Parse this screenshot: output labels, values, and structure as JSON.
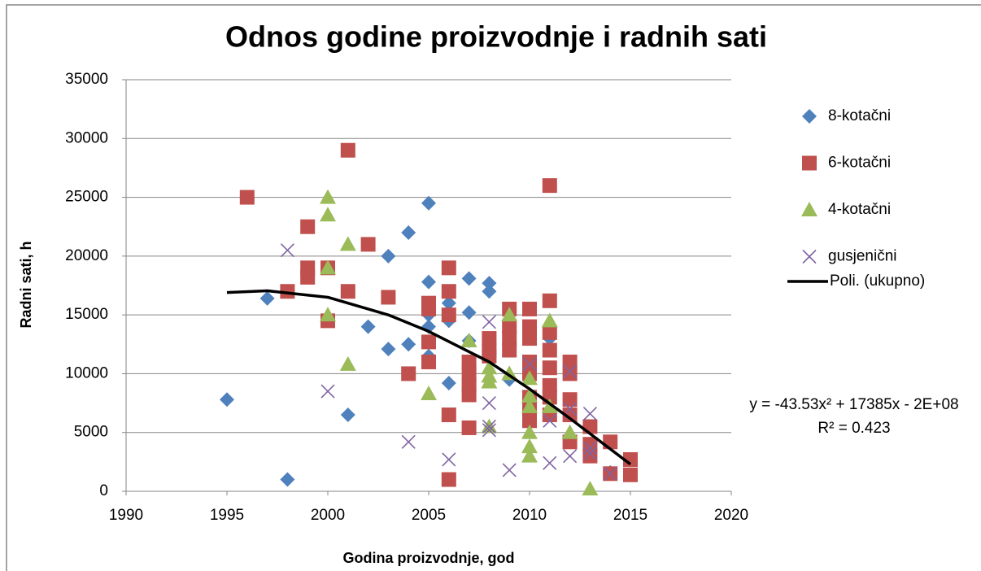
{
  "chart_data": {
    "type": "scatter",
    "title": "Odnos godine proizvodnje i radnih sati",
    "xlabel": "Godina proizvodnje, god",
    "ylabel": "Radni sati, h",
    "xlim": [
      1990,
      2020
    ],
    "xticks": [
      1990,
      1995,
      2000,
      2005,
      2010,
      2015,
      2020
    ],
    "ylim": [
      0,
      35000
    ],
    "yticks": [
      0,
      5000,
      10000,
      15000,
      20000,
      25000,
      30000,
      35000
    ],
    "grid": true,
    "legend": "right",
    "series": [
      {
        "name": "8-kotačni",
        "color": "#4f81bd",
        "marker": "diamond",
        "x": [
          1995,
          1997,
          1998,
          2001,
          2002,
          2003,
          2003,
          2004,
          2004,
          2005,
          2005,
          2005,
          2005,
          2005,
          2006,
          2006,
          2006,
          2007,
          2007,
          2007,
          2008,
          2008,
          2009,
          2011,
          2012,
          2014
        ],
        "values": [
          7800,
          16400,
          1000,
          6500,
          14000,
          12100,
          20000,
          12500,
          22000,
          24500,
          17800,
          15000,
          14000,
          11500,
          16000,
          14500,
          9200,
          18100,
          15200,
          12800,
          17700,
          17000,
          9500,
          13000,
          10200,
          1600
        ]
      },
      {
        "name": "6-kotačni",
        "color": "#c0504d",
        "marker": "square",
        "x": [
          1996,
          1998,
          1999,
          1999,
          1999,
          2000,
          2000,
          2001,
          2001,
          2002,
          2003,
          2004,
          2005,
          2005,
          2005,
          2005,
          2006,
          2006,
          2006,
          2006,
          2006,
          2007,
          2007,
          2007,
          2007,
          2007,
          2008,
          2008,
          2008,
          2009,
          2009,
          2009,
          2009,
          2010,
          2010,
          2010,
          2010,
          2010,
          2010,
          2010,
          2010,
          2011,
          2011,
          2011,
          2011,
          2011,
          2011,
          2011,
          2011,
          2012,
          2012,
          2012,
          2012,
          2012,
          2013,
          2013,
          2013,
          2014,
          2014,
          2015,
          2015
        ],
        "values": [
          25000,
          17000,
          22500,
          19000,
          18200,
          19000,
          14500,
          29000,
          17000,
          21000,
          16500,
          10000,
          16000,
          15500,
          12700,
          11000,
          19000,
          17000,
          15000,
          6500,
          1000,
          11000,
          10000,
          9000,
          8200,
          5400,
          13000,
          12000,
          11500,
          15500,
          14000,
          13000,
          12000,
          15500,
          14000,
          13000,
          11000,
          10000,
          8000,
          7000,
          6000,
          26000,
          16200,
          13500,
          12000,
          10500,
          9000,
          8000,
          6500,
          11000,
          10000,
          7800,
          6500,
          4200,
          5500,
          4000,
          3000,
          4200,
          1500,
          2700,
          1400
        ]
      },
      {
        "name": "4-kotačni",
        "color": "#9bbb59",
        "marker": "triangle",
        "x": [
          2000,
          2000,
          2000,
          2000,
          2001,
          2001,
          2005,
          2007,
          2008,
          2008,
          2008,
          2008,
          2009,
          2009,
          2010,
          2010,
          2010,
          2010,
          2010,
          2010,
          2011,
          2011,
          2012,
          2013
        ],
        "values": [
          25000,
          23500,
          19000,
          15000,
          21000,
          10800,
          8300,
          12800,
          10500,
          9800,
          9300,
          5500,
          15000,
          10000,
          9600,
          8100,
          7200,
          5000,
          3800,
          3000,
          14500,
          7200,
          5000,
          200
        ]
      },
      {
        "name": "gusjenični",
        "color": "#8064a2",
        "marker": "x",
        "x": [
          1998,
          2000,
          2004,
          2006,
          2008,
          2008,
          2008,
          2008,
          2009,
          2010,
          2011,
          2011,
          2012,
          2012,
          2012,
          2013,
          2013,
          2013,
          2014
        ],
        "values": [
          20500,
          8500,
          4200,
          2700,
          14400,
          7500,
          5500,
          5200,
          1800,
          10800,
          6000,
          2400,
          10200,
          7000,
          3000,
          6600,
          3700,
          3200,
          1500
        ]
      },
      {
        "name": "Poli. (ukupno)",
        "color": "#000000",
        "marker": "line",
        "x": [
          1995,
          1997,
          2000,
          2003,
          2005,
          2008,
          2010,
          2012,
          2015
        ],
        "values": [
          16900,
          17050,
          16500,
          15000,
          13600,
          11000,
          8700,
          6200,
          2300
        ]
      }
    ],
    "annotations": [
      "y = -43.53x² + 17385x - 2E+08",
      "R² = 0.423"
    ]
  }
}
